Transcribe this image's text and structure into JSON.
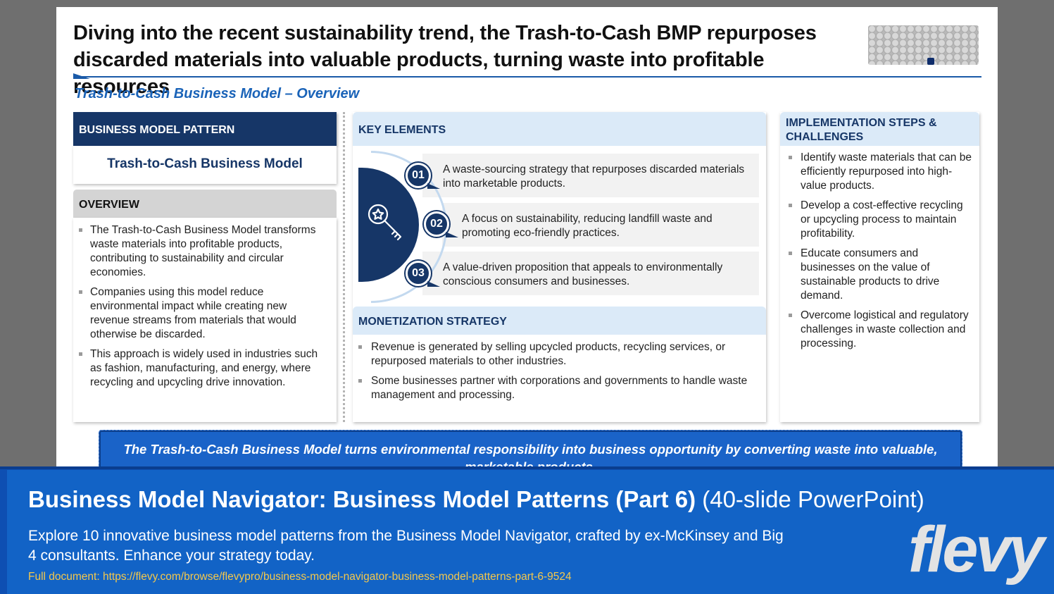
{
  "slide": {
    "headline": "Diving into the recent sustainability trend, the Trash-to-Cash BMP repurposes discarded materials into valuable products, turning waste into profitable resources",
    "subtitle": "Trash-to-Cash Business Model – Overview"
  },
  "pattern": {
    "header": "BUSINESS MODEL PATTERN",
    "name": "Trash-to-Cash Business Model"
  },
  "overview": {
    "header": "OVERVIEW",
    "bullets": [
      "The Trash-to-Cash Business Model transforms waste materials into profitable products, contributing to sustainability and circular economies.",
      "Companies using this model reduce environmental impact while creating new revenue streams from materials that would otherwise be discarded.",
      "This approach is widely used in industries such as fashion, manufacturing, and energy, where recycling and upcycling drive innovation."
    ]
  },
  "key_elements": {
    "header": "KEY ELEMENTS",
    "items": [
      {
        "num": "01",
        "text": "A waste-sourcing strategy that repurposes discarded materials into marketable products."
      },
      {
        "num": "02",
        "text": "A focus on sustainability, reducing landfill waste and promoting eco-friendly practices."
      },
      {
        "num": "03",
        "text": "A value-driven proposition that appeals to environmentally conscious consumers and businesses."
      }
    ]
  },
  "monetization": {
    "header": "MONETIZATION STRATEGY",
    "bullets": [
      "Revenue is generated by selling upcycled products, recycling services, or repurposed materials to other industries.",
      "Some businesses partner with corporations and governments to handle waste management and processing."
    ]
  },
  "implementation": {
    "header": "IMPLEMENTATION STEPS & CHALLENGES",
    "bullets": [
      "Identify waste materials that can be efficiently repurposed into high-value products.",
      "Develop a cost-effective recycling or upcycling process to maintain profitability.",
      "Educate consumers and businesses on the value of sustainable products to drive demand.",
      "Overcome logistical and regulatory challenges in waste collection and processing."
    ]
  },
  "banner": "The Trash-to-Cash Business Model turns environmental responsibility into business opportunity by converting waste into valuable, marketable products.",
  "footer": {
    "title_bold": "Business Model Navigator: Business Model Patterns (Part 6)",
    "title_light": "(40-slide PowerPoint)",
    "description": "Explore 10 innovative business model patterns from the Business Model Navigator, crafted by ex-McKinsey and Big 4 consultants. Enhance your strategy today.",
    "link": "Full document: https://flevy.com/browse/flevypro/business-model-navigator-business-model-patterns-part-6-9524",
    "logo": "flevy"
  },
  "colors": {
    "navy": "#163667",
    "accent_blue": "#1a63b8",
    "light_blue": "#dbeaf8",
    "footer_blue": "#1263c6",
    "link_yellow": "#f5c84b"
  }
}
